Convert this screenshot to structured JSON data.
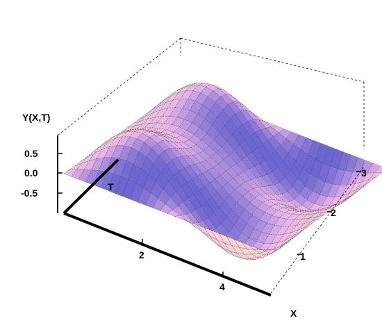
{
  "chart_data": {
    "type": "surface3d",
    "title": "",
    "zlabel": "Y(X,T)",
    "ylabel": "T",
    "xlabel": "X",
    "x_range": [
      0,
      6.28
    ],
    "t_range": [
      0,
      3.14
    ],
    "z_range": [
      -1,
      1
    ],
    "x_ticks": [
      "2",
      "4"
    ],
    "t_ticks": [
      "1",
      "2",
      "3"
    ],
    "z_ticks": [
      "0.5",
      "0.0",
      "-0.5"
    ],
    "surface": "Y = sin(X) · sin(T) + 0.5 · sin(X) · sin(3T)",
    "box": true,
    "mesh": true,
    "colors": {
      "low": "#3f49c8",
      "mid": "#e8b4e8",
      "high": "#ffe0c4",
      "background": "#ffffff"
    }
  }
}
